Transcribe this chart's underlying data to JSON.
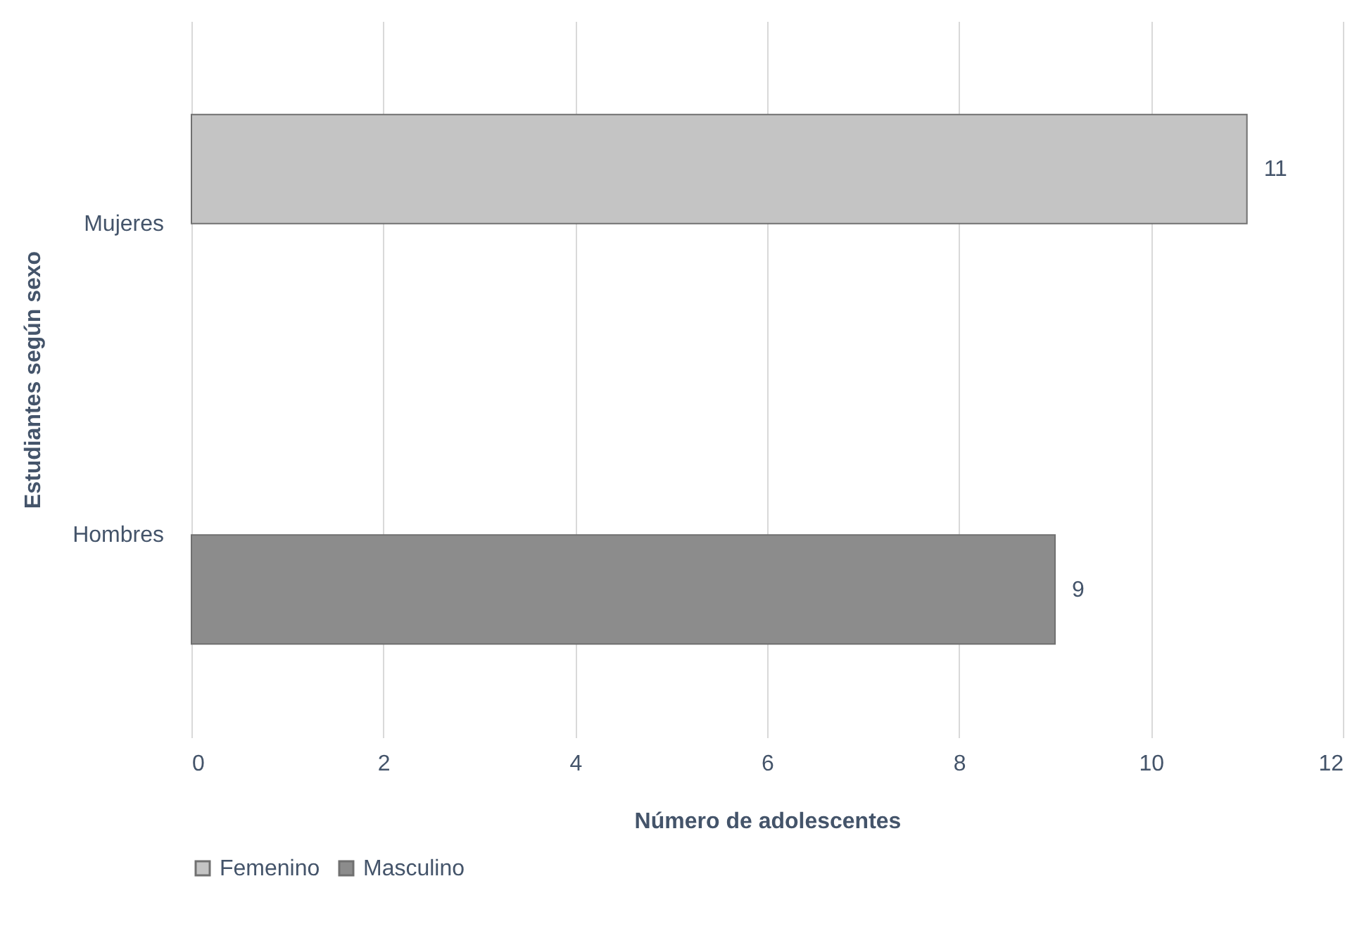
{
  "chart_data": {
    "type": "bar",
    "orientation": "horizontal",
    "categories": [
      "Mujeres",
      "Hombres"
    ],
    "series": [
      {
        "name": "Femenino",
        "color": "#c4c4c4",
        "values": [
          11,
          null
        ]
      },
      {
        "name": "Masculino",
        "color": "#8c8c8c",
        "values": [
          null,
          9
        ]
      }
    ],
    "xlim": [
      0,
      12
    ],
    "xticks": [
      0,
      2,
      4,
      6,
      8,
      10,
      12
    ],
    "xlabel": "Número de adolescentes",
    "ylabel": "Estudiantes según sexo",
    "grid": "x",
    "legend": "bottom",
    "data_labels": true
  }
}
